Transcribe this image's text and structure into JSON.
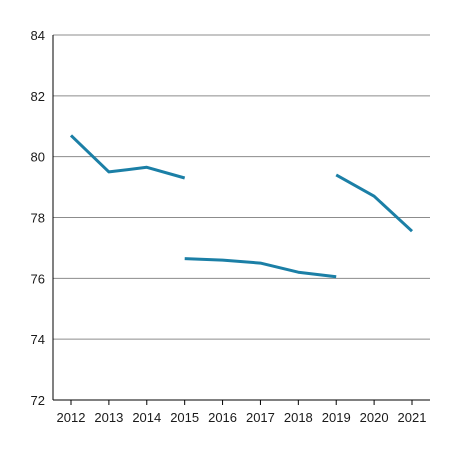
{
  "chart_data": {
    "type": "line",
    "title": "",
    "xlabel": "",
    "ylabel": "",
    "ylim": [
      72,
      84
    ],
    "yticks": [
      72,
      74,
      76,
      78,
      80,
      82,
      84
    ],
    "grid": true,
    "legend": "none",
    "categories": [
      "2012",
      "2013",
      "2014",
      "2015",
      "2016",
      "2017",
      "2018",
      "2019",
      "2020",
      "2021"
    ],
    "line_color": "#1b7fa6",
    "grid_color": "#8c8c8c",
    "segments": [
      {
        "x": [
          2012,
          2013,
          2014,
          2015
        ],
        "y": [
          80.7,
          79.5,
          79.65,
          79.3
        ]
      },
      {
        "x": [
          2015,
          2016,
          2017,
          2018,
          2019
        ],
        "y": [
          76.65,
          76.6,
          76.5,
          76.2,
          76.05
        ]
      },
      {
        "x": [
          2019,
          2020,
          2021
        ],
        "y": [
          79.4,
          78.7,
          77.55
        ]
      }
    ]
  }
}
